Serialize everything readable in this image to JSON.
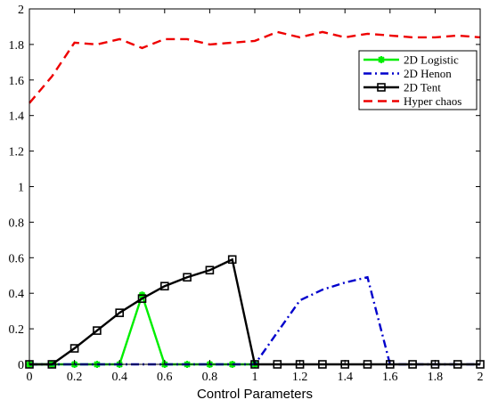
{
  "chart_data": {
    "type": "line",
    "title": "",
    "xlabel": "Control Parameters",
    "ylabel": "",
    "xlim": [
      0,
      2
    ],
    "ylim": [
      0,
      2
    ],
    "x_ticks": [
      "0",
      "0.2",
      "0.4",
      "0.6",
      "0.8",
      "1",
      "1.2",
      "1.4",
      "1.6",
      "1.8",
      "2"
    ],
    "y_ticks": [
      "0",
      "0.2",
      "0.4",
      "0.6",
      "0.8",
      "1",
      "1.2",
      "1.4",
      "1.6",
      "1.8",
      "2"
    ],
    "grid": false,
    "legend_position": "top-right",
    "series": [
      {
        "name": "2D Logistic",
        "color": "#00ee00",
        "line_style": "solid",
        "marker": "asterisk",
        "x": [
          0,
          0.1,
          0.2,
          0.3,
          0.4,
          0.5,
          0.6,
          0.7,
          0.8,
          0.9,
          1
        ],
        "y": [
          0,
          0,
          0,
          0,
          0,
          0.39,
          0,
          0,
          0,
          0,
          0
        ]
      },
      {
        "name": "2D Henon",
        "color": "#0000cc",
        "line_style": "dashdot",
        "marker": "none",
        "x": [
          0,
          0.1,
          0.2,
          0.3,
          0.4,
          0.5,
          0.6,
          0.7,
          0.8,
          0.9,
          1,
          1.1,
          1.2,
          1.3,
          1.4,
          1.5,
          1.6,
          1.7,
          1.8,
          1.9,
          2
        ],
        "y": [
          0,
          0,
          0,
          0,
          0,
          0,
          0,
          0,
          0,
          0,
          0,
          0.18,
          0.36,
          0.42,
          0.46,
          0.49,
          0,
          0,
          0,
          0,
          0
        ]
      },
      {
        "name": "2D Tent",
        "color": "#000000",
        "line_style": "solid",
        "marker": "square",
        "x": [
          0,
          0.1,
          0.2,
          0.3,
          0.4,
          0.5,
          0.6,
          0.7,
          0.8,
          0.9,
          1,
          1.1,
          1.2,
          1.3,
          1.4,
          1.5,
          1.6,
          1.7,
          1.8,
          1.9,
          2
        ],
        "y": [
          0,
          0,
          0.09,
          0.19,
          0.29,
          0.37,
          0.44,
          0.49,
          0.53,
          0.59,
          0,
          0,
          0,
          0,
          0,
          0,
          0,
          0,
          0,
          0,
          0
        ]
      },
      {
        "name": "Hyper chaos",
        "color": "#ee0000",
        "line_style": "dashed",
        "marker": "none",
        "x": [
          0,
          0.1,
          0.2,
          0.3,
          0.4,
          0.5,
          0.6,
          0.7,
          0.8,
          0.9,
          1,
          1.1,
          1.2,
          1.3,
          1.4,
          1.5,
          1.6,
          1.7,
          1.8,
          1.9,
          2
        ],
        "y": [
          1.47,
          1.62,
          1.81,
          1.8,
          1.83,
          1.78,
          1.83,
          1.83,
          1.8,
          1.81,
          1.82,
          1.87,
          1.84,
          1.87,
          1.84,
          1.86,
          1.85,
          1.84,
          1.84,
          1.85,
          1.84
        ]
      }
    ]
  }
}
